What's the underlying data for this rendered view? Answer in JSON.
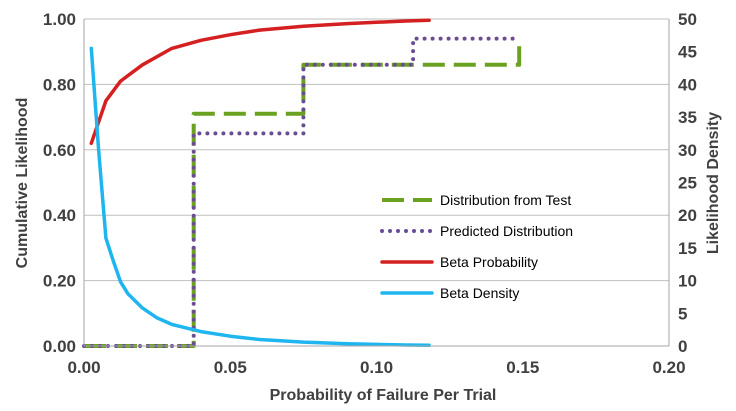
{
  "chart_data": {
    "type": "line",
    "title": "",
    "xlabel": "Probability of Failure Per Trial",
    "ylabel": "Cumulative Likelihood",
    "y2label": "Likelihood Density",
    "xlim": [
      0,
      0.2
    ],
    "ylim": [
      0,
      1
    ],
    "y2lim": [
      0,
      50
    ],
    "x_ticks": [
      "0.00",
      "0.05",
      "0.10",
      "0.15",
      "0.20"
    ],
    "y_ticks": [
      "0.00",
      "0.20",
      "0.40",
      "0.60",
      "0.80",
      "1.00"
    ],
    "y2_ticks": [
      "0",
      "5",
      "10",
      "15",
      "20",
      "25",
      "30",
      "35",
      "40",
      "45",
      "50"
    ],
    "grid": "horizontal",
    "legend_position": "center-right",
    "series": [
      {
        "name": "Distribution from Test",
        "axis": "left",
        "style": "dashed",
        "color": "#6AA121",
        "x": [
          0.0,
          0.0375,
          0.0375,
          0.075,
          0.075,
          0.1125,
          0.1125,
          0.1488,
          0.1488
        ],
        "y": [
          0.0,
          0.0,
          0.71,
          0.71,
          0.86,
          0.86,
          0.86,
          0.86,
          0.94
        ]
      },
      {
        "name": "Predicted Distribution",
        "axis": "left",
        "style": "dotted",
        "color": "#6A4C93",
        "x": [
          0.0,
          0.0375,
          0.0375,
          0.075,
          0.075,
          0.1125,
          0.1125,
          0.148
        ],
        "y": [
          0.0,
          0.0,
          0.65,
          0.65,
          0.86,
          0.86,
          0.94,
          0.94
        ]
      },
      {
        "name": "Beta Probability",
        "axis": "left",
        "style": "solid",
        "color": "#D42020",
        "x": [
          0.0025,
          0.0075,
          0.0125,
          0.02,
          0.03,
          0.04,
          0.05,
          0.06,
          0.075,
          0.09,
          0.1,
          0.11,
          0.118
        ],
        "y": [
          0.62,
          0.75,
          0.81,
          0.86,
          0.91,
          0.935,
          0.952,
          0.966,
          0.978,
          0.986,
          0.99,
          0.994,
          0.996
        ]
      },
      {
        "name": "Beta Density",
        "axis": "right",
        "style": "solid",
        "color": "#1FB6F0",
        "x": [
          0.0025,
          0.005,
          0.0075,
          0.01,
          0.0125,
          0.015,
          0.02,
          0.025,
          0.03,
          0.04,
          0.05,
          0.06,
          0.075,
          0.09,
          0.1,
          0.11,
          0.118
        ],
        "y": [
          45.5,
          30,
          16.5,
          13,
          9.8,
          8,
          5.8,
          4.3,
          3.3,
          2.2,
          1.5,
          1.0,
          0.6,
          0.35,
          0.25,
          0.15,
          0.1
        ]
      }
    ]
  }
}
